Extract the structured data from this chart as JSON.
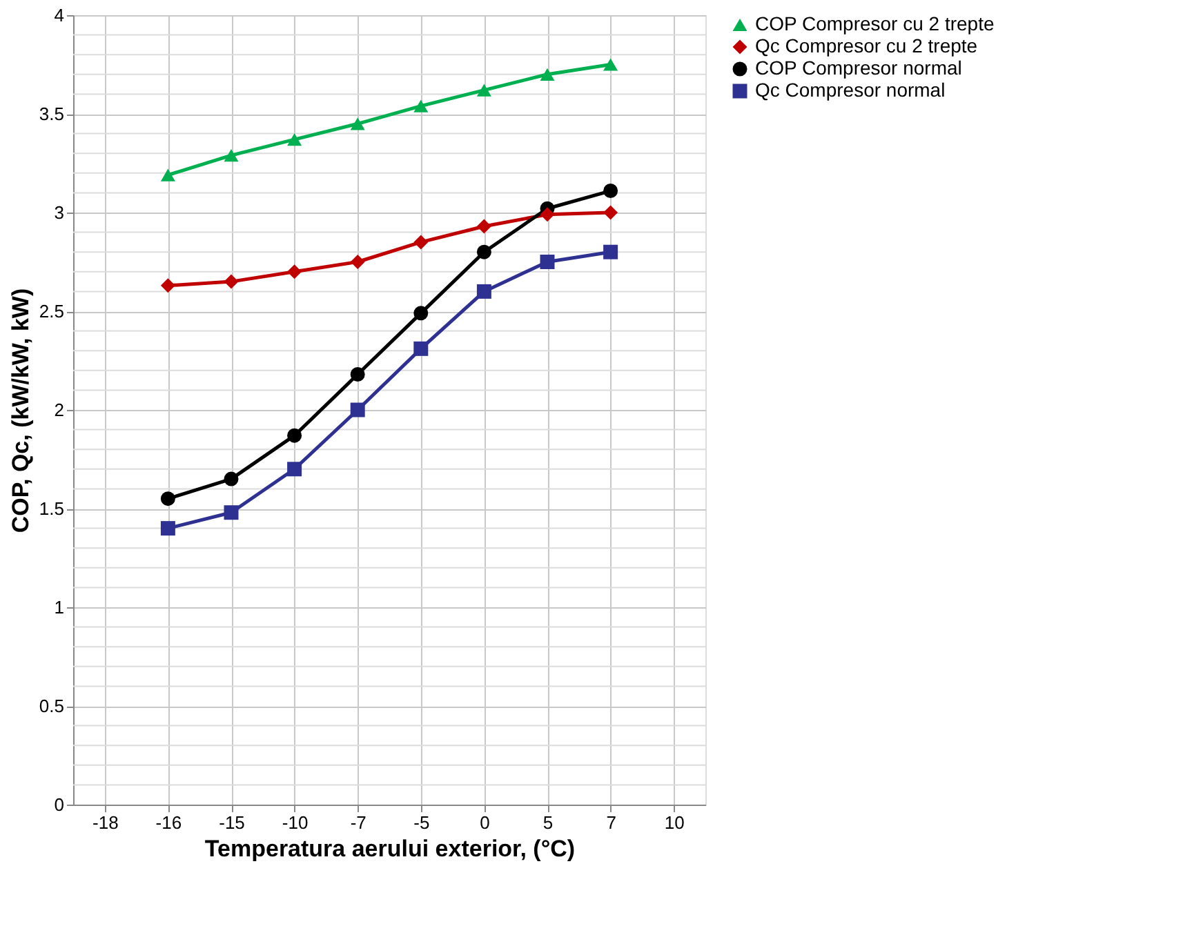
{
  "chart_data": {
    "type": "line",
    "xlabel": "Temperatura aerului exterior, (°C)",
    "ylabel": "COP,  Qc, (kW/kW,  kW)",
    "categories": [
      "-18",
      "-16",
      "-15",
      "-10",
      "-7",
      "-5",
      "0",
      "5",
      "7",
      "10"
    ],
    "ylim": [
      0,
      4
    ],
    "yticks": [
      0,
      0.5,
      1,
      1.5,
      2,
      2.5,
      3,
      3.5,
      4
    ],
    "grid": true,
    "legend": "right",
    "series": [
      {
        "name": "COP Compresor cu 2 trepte",
        "color": "#00b050",
        "marker": "triangle",
        "values": [
          null,
          3.19,
          3.29,
          3.37,
          3.45,
          3.54,
          3.62,
          3.7,
          3.75,
          null
        ]
      },
      {
        "name": "Qc Compresor cu 2 trepte",
        "color": "#c00000",
        "marker": "diamond",
        "values": [
          null,
          2.63,
          2.65,
          2.7,
          2.75,
          2.85,
          2.93,
          2.99,
          3.0,
          null
        ]
      },
      {
        "name": "COP Compresor normal",
        "color": "#000000",
        "marker": "circle",
        "values": [
          null,
          1.55,
          1.65,
          1.87,
          2.18,
          2.49,
          2.8,
          3.02,
          3.11,
          null
        ]
      },
      {
        "name": "Qc Compresor normal",
        "color": "#2e3192",
        "marker": "square",
        "values": [
          null,
          1.4,
          1.48,
          1.7,
          2.0,
          2.31,
          2.6,
          2.75,
          2.8,
          null
        ]
      }
    ]
  }
}
